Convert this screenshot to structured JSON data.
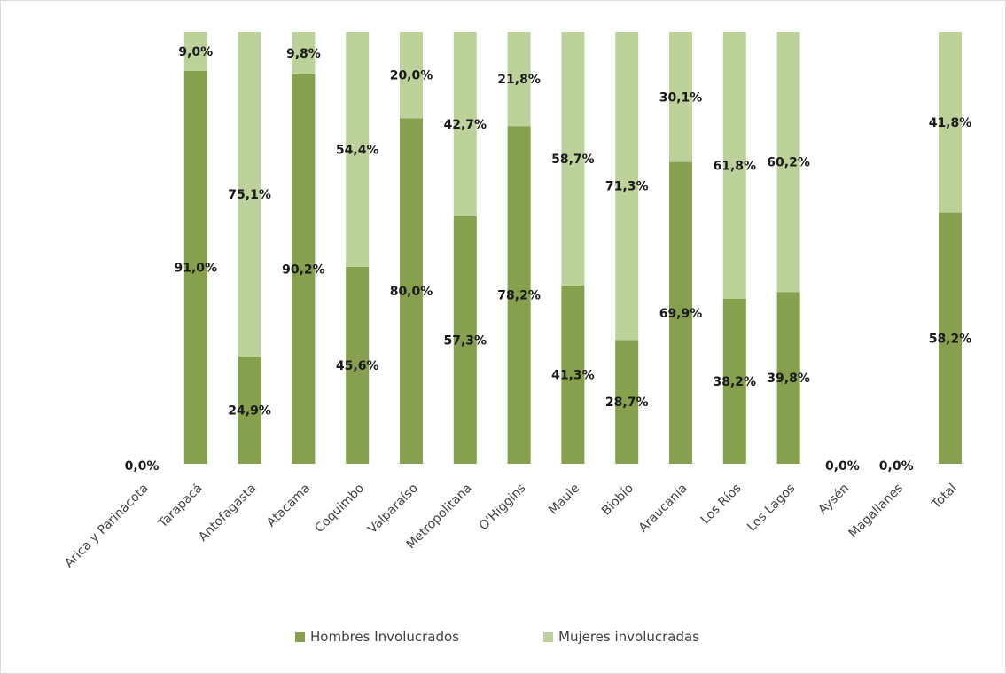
{
  "chart_data": {
    "type": "bar",
    "stacked": true,
    "percent_stacked": true,
    "categories": [
      "Arica y Parinacota",
      "Tarapacá",
      "Antofagasta",
      "Atacama",
      "Coquimbo",
      "Valparaíso",
      "Metropolitana",
      "O'Higgins",
      "Maule",
      "Biobío",
      "Araucanía",
      "Los Ríos",
      "Los Lagos",
      "Aysén",
      "Magallanes",
      "Total"
    ],
    "series": [
      {
        "name": "Hombres Involucrados",
        "color": "#86a04d",
        "values": [
          0,
          91.0,
          24.9,
          90.2,
          45.6,
          80.0,
          57.3,
          78.2,
          41.3,
          28.7,
          69.9,
          38.2,
          39.8,
          0,
          0,
          58.2
        ],
        "labels": [
          "0,0%",
          "91,0%",
          "24,9%",
          "90,2%",
          "45,6%",
          "80,0%",
          "57,3%",
          "78,2%",
          "41,3%",
          "28,7%",
          "69,9%",
          "38,2%",
          "39,8%",
          "0,0%",
          "0,0%",
          "58,2%"
        ]
      },
      {
        "name": "Mujeres involucradas",
        "color": "#bdd29a",
        "values": [
          0,
          9.0,
          75.1,
          9.8,
          54.4,
          20.0,
          42.7,
          21.8,
          58.7,
          71.3,
          30.1,
          61.8,
          60.2,
          0,
          0,
          41.8
        ],
        "labels": [
          "",
          "9,0%",
          "75,1%",
          "9,8%",
          "54,4%",
          "20,0%",
          "42,7%",
          "21,8%",
          "58,7%",
          "71,3%",
          "30,1%",
          "61,8%",
          "60,2%",
          "",
          "",
          "41,8%"
        ]
      }
    ],
    "ylim": [
      0,
      100
    ],
    "grid": false,
    "legend_position": "bottom"
  }
}
